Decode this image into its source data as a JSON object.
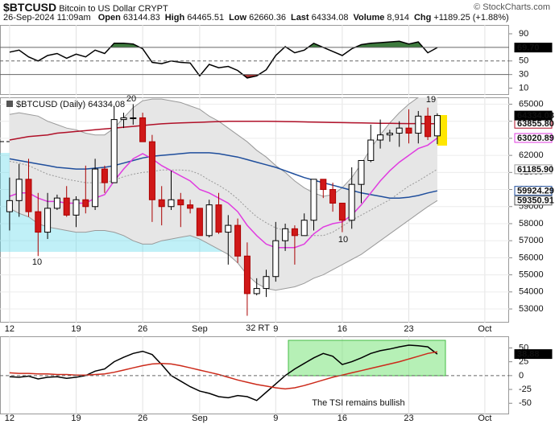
{
  "header": {
    "symbol": "$BTCUSD",
    "name": "Bitcoin to US Dollar",
    "exchange": "CRYPT",
    "source": "© StockCharts.com",
    "date": "26-Sep-2024 11:09am",
    "fields": [
      {
        "name": "Open",
        "value": "63144.83"
      },
      {
        "name": "High",
        "value": "64465.51"
      },
      {
        "name": "Low",
        "value": "62660.36"
      },
      {
        "name": "Last",
        "value": "64334.08"
      },
      {
        "name": "Volume",
        "value": "8,914"
      },
      {
        "name": "Chg",
        "value": "+1189.25 (+1.88%)"
      }
    ]
  },
  "chart_data": [
    {
      "type": "line",
      "ylim": [
        0,
        103
      ],
      "yticks": [
        90,
        50,
        30,
        10
      ],
      "levels": [
        70,
        50,
        30
      ],
      "level_styles": [
        "solid",
        "dashed",
        "solid"
      ],
      "overbought": 70,
      "oversold": 30,
      "overbought_color": "#3d7a3d",
      "oversold_color": "#a83232",
      "series": [
        {
          "color": "#000000",
          "end_label": "69.70",
          "values": [
            63,
            66,
            56,
            50,
            58,
            61,
            54,
            60,
            56,
            66,
            61,
            76,
            76,
            75,
            68,
            48,
            46,
            50,
            48,
            47,
            28,
            45,
            40,
            42,
            36,
            25,
            28,
            37,
            58,
            71,
            62,
            66,
            76,
            70,
            64,
            58,
            68,
            74,
            76,
            77,
            78,
            79,
            75,
            78,
            62,
            69.7,
            null,
            null,
            null,
            null,
            null,
            null,
            null
          ]
        }
      ]
    },
    {
      "type": "candlestick",
      "title": "$BTCUSD (Daily) 64334.08",
      "categories": [
        "12",
        null,
        null,
        null,
        null,
        null,
        null,
        "19",
        null,
        null,
        null,
        null,
        null,
        null,
        "26",
        null,
        null,
        null,
        null,
        null,
        "Sep",
        null,
        null,
        null,
        null,
        null,
        null,
        null,
        "9",
        null,
        null,
        null,
        null,
        null,
        null,
        "16",
        null,
        null,
        null,
        null,
        null,
        null,
        "23",
        null,
        null,
        null,
        null,
        null,
        null,
        null,
        "Oct",
        null,
        null
      ],
      "open": [
        58700,
        59350,
        60600,
        58700,
        57500,
        58900,
        59500,
        58500,
        59400,
        59000,
        61200,
        60400,
        64100,
        64200,
        64200,
        62800,
        59400,
        59000,
        59400,
        59100,
        58900,
        57300,
        59100,
        57500,
        57900,
        56100,
        53900,
        54200,
        54900,
        57000,
        57700,
        57300,
        58200,
        60600,
        60000,
        59200,
        58200,
        60300,
        61700,
        62900,
        63200,
        63300,
        63600,
        63300,
        64300,
        63144.83,
        null,
        null,
        null,
        null,
        null,
        null,
        null
      ],
      "high": [
        60700,
        61500,
        61800,
        59800,
        59800,
        59700,
        60200,
        59600,
        61400,
        61800,
        61400,
        64900,
        64500,
        65000,
        64500,
        63200,
        60200,
        61100,
        59800,
        59400,
        58900,
        59400,
        59800,
        58500,
        58300,
        56900,
        54800,
        55300,
        58100,
        58000,
        57900,
        58600,
        60600,
        60600,
        60400,
        59200,
        61300,
        61700,
        63800,
        64100,
        63500,
        64000,
        64700,
        64600,
        64800,
        64465.51,
        null,
        null,
        null,
        null,
        null,
        null,
        null
      ],
      "low": [
        57600,
        58400,
        58400,
        56100,
        57100,
        58800,
        58400,
        57800,
        58600,
        58800,
        59800,
        60400,
        63600,
        63800,
        62800,
        58100,
        57900,
        58800,
        57800,
        58600,
        57300,
        57200,
        57400,
        55600,
        55700,
        52600,
        53800,
        53700,
        54600,
        56400,
        55600,
        57300,
        57600,
        59500,
        58700,
        57500,
        57700,
        59200,
        61600,
        62400,
        62800,
        62500,
        62700,
        62700,
        62900,
        62660.36,
        null,
        null,
        null,
        null,
        null,
        null,
        null
      ],
      "close": [
        59350,
        60600,
        58700,
        57500,
        58900,
        59500,
        58500,
        59400,
        59000,
        61200,
        60400,
        64100,
        64200,
        64200,
        62800,
        59400,
        59000,
        59400,
        59100,
        58900,
        57300,
        59100,
        57500,
        57900,
        56100,
        53900,
        54200,
        54900,
        57000,
        57700,
        57300,
        58200,
        60600,
        60000,
        59200,
        58200,
        60300,
        61700,
        62900,
        63200,
        63300,
        63600,
        63300,
        64300,
        63100,
        64334.08,
        null,
        null,
        null,
        null,
        null,
        null,
        null
      ],
      "close_label": "64334.08",
      "up_color": "#ffffff",
      "down_color": "#d01818",
      "band_color": "#e6e6e6",
      "band": {
        "upper": [
          64400,
          64500,
          64400,
          64300,
          64000,
          63800,
          63600,
          63500,
          63300,
          63200,
          63200,
          63600,
          64200,
          64800,
          65200,
          65300,
          65300,
          65200,
          65100,
          64900,
          64700,
          64300,
          64000,
          63600,
          63200,
          62800,
          62300,
          61900,
          61400,
          61000,
          60500,
          60100,
          59800,
          59600,
          59700,
          60100,
          60700,
          61500,
          62400,
          63200,
          63900,
          64500,
          65000,
          65400,
          65800,
          66100,
          null,
          null,
          null,
          null,
          null,
          null,
          null
        ],
        "lower": [
          58900,
          58600,
          58400,
          58000,
          57800,
          57700,
          57600,
          57500,
          57500,
          57600,
          57600,
          57500,
          57300,
          57000,
          56800,
          56800,
          57000,
          57100,
          57200,
          57300,
          57100,
          56800,
          56500,
          56200,
          55700,
          55000,
          54500,
          54200,
          54100,
          54200,
          54300,
          54500,
          54800,
          55000,
          55300,
          55600,
          55900,
          56200,
          56600,
          57000,
          57400,
          57800,
          58200,
          58600,
          59000,
          59350.91,
          null,
          null,
          null,
          null,
          null,
          null,
          null
        ],
        "lower_label": "59350.91"
      },
      "series": [
        {
          "color": "#999999",
          "dash": true,
          "end_label": "61185.90",
          "values": [
            61650,
            61550,
            61400,
            61150,
            60900,
            60750,
            60600,
            60500,
            60400,
            60400,
            60400,
            60550,
            60750,
            60900,
            61000,
            61050,
            61150,
            61150,
            61150,
            61100,
            60900,
            60550,
            60250,
            59900,
            59450,
            58900,
            58400,
            58050,
            57750,
            57600,
            57400,
            57300,
            57300,
            57300,
            57500,
            57850,
            58200,
            58500,
            58800,
            59100,
            59400,
            59800,
            60200,
            60500,
            60850,
            61185.9,
            null,
            null,
            null,
            null,
            null,
            null,
            null
          ]
        },
        {
          "color": "#b01028",
          "end_label": "63855.80",
          "values": [
            62900,
            63000,
            63100,
            63150,
            63200,
            63300,
            63350,
            63400,
            63450,
            63500,
            63550,
            63600,
            63650,
            63700,
            63750,
            63800,
            63850,
            63880,
            63900,
            63920,
            63940,
            63960,
            63980,
            64000,
            64000,
            64000,
            64000,
            64000,
            63990,
            63980,
            63970,
            63960,
            63950,
            63940,
            63930,
            63920,
            63910,
            63900,
            63890,
            63880,
            63875,
            63870,
            63865,
            63862,
            63858,
            63855.8,
            null,
            null,
            null,
            null,
            null,
            null,
            null
          ]
        },
        {
          "color": "#1f4e9c",
          "end_label": "59924.29",
          "values": [
            61800,
            61700,
            61600,
            61500,
            61400,
            61300,
            61250,
            61200,
            61200,
            61250,
            61300,
            61400,
            61550,
            61700,
            61850,
            61950,
            62000,
            62050,
            62100,
            62150,
            62150,
            62150,
            62100,
            62000,
            61900,
            61750,
            61600,
            61450,
            61300,
            61100,
            60900,
            60700,
            60550,
            60400,
            60250,
            60100,
            59950,
            59800,
            59700,
            59600,
            59500,
            59500,
            59550,
            59650,
            59800,
            59924.29,
            null,
            null,
            null,
            null,
            null,
            null,
            null
          ]
        },
        {
          "color": "#e03ce0",
          "end_label": "63020.89",
          "values": [
            59600,
            59800,
            59800,
            59500,
            59300,
            59300,
            59200,
            59200,
            59200,
            59500,
            59700,
            60500,
            61200,
            61800,
            62100,
            61800,
            61400,
            61100,
            60800,
            60500,
            60000,
            59800,
            59500,
            59200,
            58700,
            57900,
            57300,
            56800,
            56600,
            56600,
            56600,
            56800,
            57400,
            57800,
            58000,
            58100,
            58500,
            59100,
            59800,
            60500,
            61100,
            61600,
            62000,
            62400,
            62600,
            63020.89,
            null,
            null,
            null,
            null,
            null,
            null,
            null
          ]
        }
      ],
      "ylim": [
        52200,
        65400
      ],
      "yticks": [
        65000,
        64000,
        63000,
        62000,
        61000,
        60000,
        59000,
        58000,
        57000,
        56000,
        55000,
        54000,
        53000
      ],
      "grid": true,
      "annotations": [
        "20",
        "10",
        "32 RT",
        "10",
        "19"
      ],
      "annotation_color": "#2233cc"
    },
    {
      "type": "line",
      "ylim": [
        -70,
        71
      ],
      "yticks": [
        50,
        25,
        0,
        -25,
        -50
      ],
      "levels": [
        0
      ],
      "level_styles": [
        "dashed"
      ],
      "annotations": [
        "The TSI remains bullish"
      ],
      "annotation_color": "#2233cc",
      "series": [
        {
          "color": "#000000",
          "end_label": "38.88",
          "values": [
            -2,
            -3,
            -1,
            -6,
            -3,
            -2,
            -5,
            -3,
            0,
            8,
            12,
            25,
            33,
            40,
            44,
            38,
            20,
            0,
            -10,
            -20,
            -28,
            -32,
            -38,
            -40,
            -36,
            -38,
            -45,
            -30,
            -15,
            0,
            12,
            22,
            32,
            40,
            35,
            20,
            25,
            32,
            40,
            45,
            48,
            52,
            55,
            54,
            52,
            38.88,
            null,
            null,
            null,
            null,
            null,
            null,
            null
          ]
        },
        {
          "color": "#cc2a1a",
          "values": [
            5,
            4,
            4,
            3,
            3,
            2,
            2,
            1,
            1,
            2,
            3,
            6,
            10,
            14,
            18,
            21,
            22,
            21,
            18,
            14,
            10,
            6,
            2,
            -3,
            -8,
            -12,
            -16,
            -19,
            -22,
            -24,
            -22,
            -18,
            -13,
            -8,
            -3,
            1,
            5,
            9,
            13,
            17,
            21,
            25,
            30,
            35,
            40,
            43,
            null,
            null,
            null,
            null,
            null,
            null,
            null
          ]
        }
      ]
    }
  ]
}
